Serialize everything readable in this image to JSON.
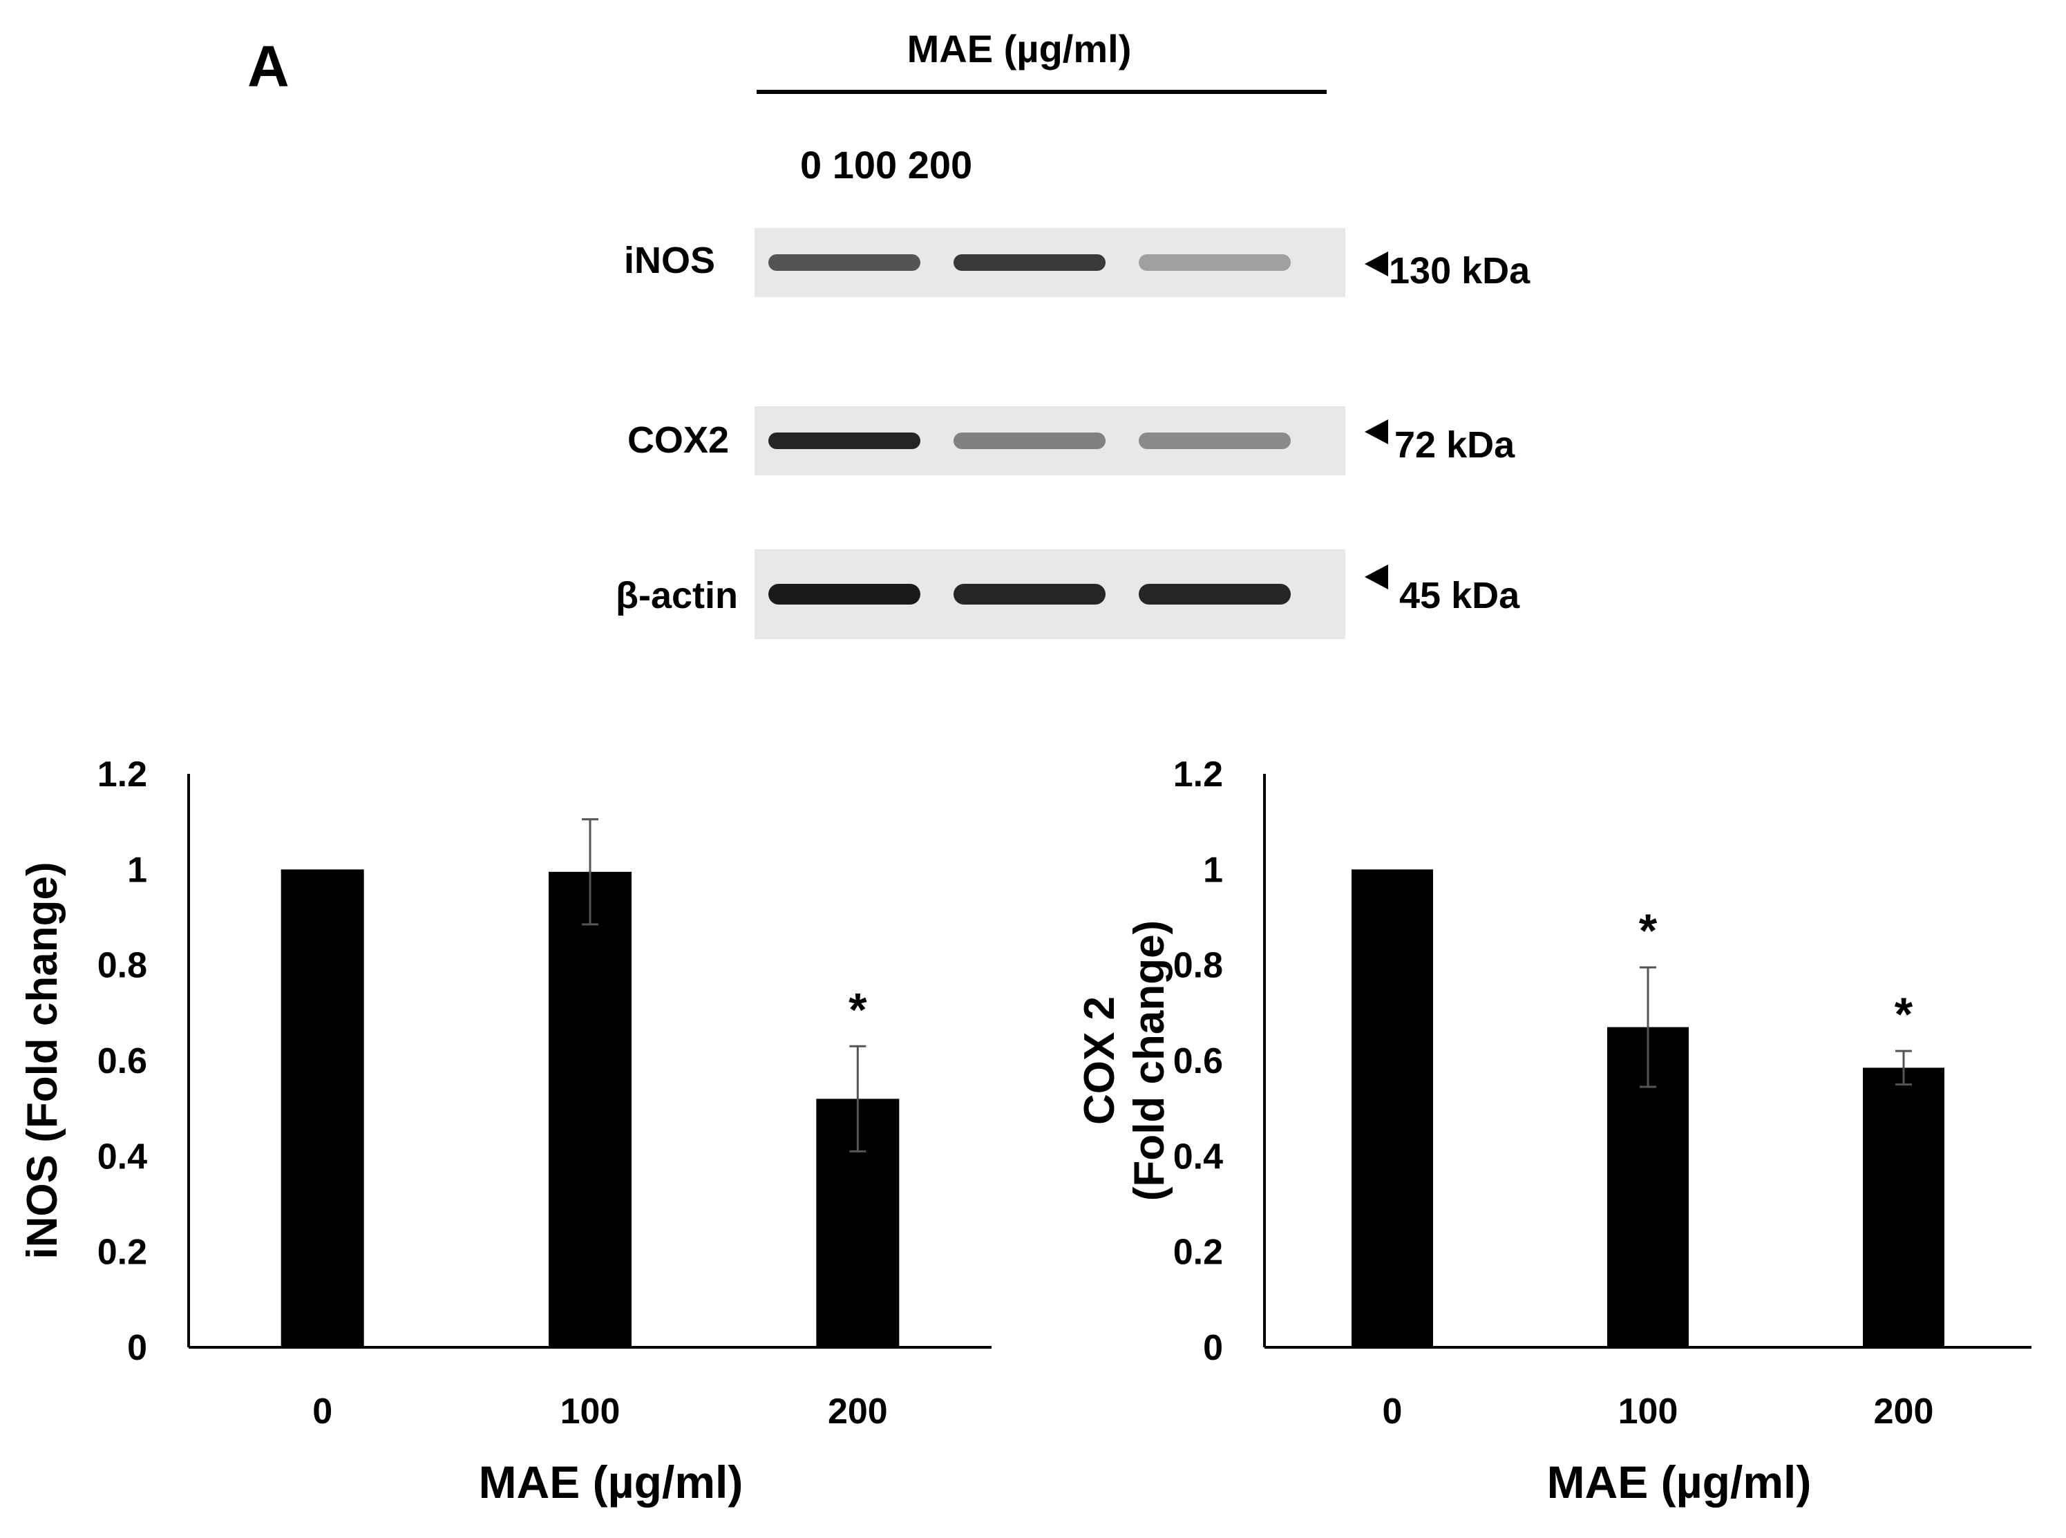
{
  "panel_label": "A",
  "blot": {
    "header": "MAE (µg/ml)",
    "doses_label": "0 100 200",
    "rows": [
      {
        "protein": "iNOS",
        "size": "130 kDa",
        "bands": [
          0.72,
          0.85,
          0.35
        ]
      },
      {
        "protein": "COX2",
        "size": "72 kDa",
        "bands": [
          0.95,
          0.5,
          0.45
        ]
      },
      {
        "protein": "β-actin",
        "size": "45 kDa",
        "bands": [
          1.0,
          0.95,
          0.95
        ]
      }
    ],
    "colors": {
      "membrane": "#e8e8e8",
      "band": "#1a1a1a"
    }
  },
  "chart_data": [
    {
      "type": "bar",
      "categories": [
        "0",
        "100",
        "200"
      ],
      "values": [
        1.0,
        0.995,
        0.52
      ],
      "error": [
        0.0,
        0.11,
        0.11
      ],
      "significance": [
        "",
        "",
        "*"
      ],
      "xlabel": "MAE (µg/ml)",
      "ylabel": "iNOS (Fold change)",
      "ylim": [
        0,
        1.2
      ],
      "yticks": [
        "0",
        "0.2",
        "0.4",
        "0.6",
        "0.8",
        "1",
        "1.2"
      ],
      "bar_color": "#000000"
    },
    {
      "type": "bar",
      "categories": [
        "0",
        "100",
        "200"
      ],
      "values": [
        1.0,
        0.67,
        0.585
      ],
      "error": [
        0.0,
        0.125,
        0.035
      ],
      "significance": [
        "",
        "*",
        "*"
      ],
      "xlabel": "MAE (µg/ml)",
      "ylabel": [
        "COX 2",
        "(Fold change)"
      ],
      "ylim": [
        0,
        1.2
      ],
      "yticks": [
        "0",
        "0.2",
        "0.4",
        "0.6",
        "0.8",
        "1",
        "1.2"
      ],
      "bar_color": "#000000"
    }
  ]
}
